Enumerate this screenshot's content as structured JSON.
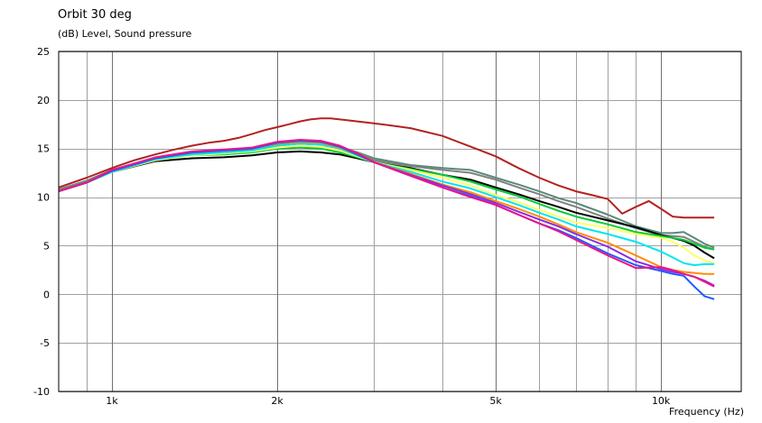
{
  "chart_data": {
    "type": "line",
    "title": "Orbit 30 deg",
    "ylabel": "(dB)  Level, Sound pressure",
    "xlabel": "Frequency  (Hz)",
    "x_scale": "log",
    "xlim": [
      800,
      14000
    ],
    "ylim": [
      -10,
      25
    ],
    "y_ticks": [
      25,
      20,
      15,
      10,
      5,
      0,
      -5,
      -10
    ],
    "y_tick_labels": [
      "25",
      "20",
      "15",
      "10",
      "5",
      "0",
      "-5",
      "-10"
    ],
    "x_ticks": [
      1000,
      2000,
      5000,
      10000
    ],
    "x_tick_labels": [
      "1k",
      "2k",
      "5k",
      "10k"
    ],
    "grid": true,
    "series": [
      {
        "color": "#b22222",
        "x": [
          800,
          900,
          1000,
          1100,
          1200,
          1300,
          1400,
          1500,
          1600,
          1700,
          1800,
          1900,
          2000,
          2100,
          2200,
          2300,
          2400,
          2500,
          2600,
          2800,
          3000,
          3200,
          3500,
          4000,
          4500,
          5000,
          5500,
          6000,
          6500,
          7000,
          7500,
          8000,
          8500,
          9000,
          9500,
          10000,
          10500,
          11000,
          11500,
          12000,
          12500
        ],
        "y": [
          11.0,
          12.0,
          13.0,
          13.8,
          14.4,
          14.9,
          15.3,
          15.6,
          15.8,
          16.1,
          16.5,
          16.9,
          17.2,
          17.5,
          17.8,
          18.0,
          18.1,
          18.1,
          18.0,
          17.8,
          17.6,
          17.4,
          17.1,
          16.3,
          15.2,
          14.2,
          13.0,
          12.0,
          11.2,
          10.6,
          10.2,
          9.8,
          8.3,
          9.0,
          9.6,
          8.8,
          8.0,
          7.9,
          7.9,
          7.9,
          7.9
        ]
      },
      {
        "color": "#5a8a7a",
        "x": [
          800,
          900,
          1000,
          1200,
          1400,
          1600,
          1800,
          2000,
          2200,
          2400,
          2600,
          2800,
          3000,
          3500,
          4000,
          4500,
          5000,
          5500,
          6000,
          6500,
          7000,
          8000,
          9000,
          10000,
          10500,
          11000,
          11500,
          12000,
          12500
        ],
        "y": [
          10.8,
          11.7,
          12.8,
          14.0,
          14.6,
          14.8,
          15.0,
          15.4,
          15.7,
          15.6,
          15.2,
          14.6,
          14.0,
          13.3,
          13.0,
          12.8,
          12.0,
          11.3,
          10.6,
          9.9,
          9.4,
          8.2,
          7.0,
          6.3,
          6.3,
          6.4,
          5.8,
          5.2,
          4.8
        ]
      },
      {
        "color": "#808080",
        "x": [
          800,
          900,
          1000,
          1200,
          1400,
          1600,
          1800,
          2000,
          2200,
          2400,
          2600,
          2800,
          3000,
          3500,
          4000,
          4500,
          5000,
          5500,
          6000,
          6500,
          7000,
          8000,
          9000,
          10000,
          10500,
          11000,
          11500,
          12000,
          12500
        ],
        "y": [
          10.7,
          11.6,
          12.7,
          13.9,
          14.5,
          14.7,
          14.9,
          15.3,
          15.5,
          15.4,
          15.0,
          14.4,
          13.8,
          13.2,
          12.8,
          12.5,
          11.8,
          11.0,
          10.3,
          9.6,
          9.0,
          7.8,
          6.8,
          6.1,
          6.0,
          5.9,
          5.4,
          4.9,
          4.6
        ]
      },
      {
        "color": "#000000",
        "x": [
          800,
          900,
          1000,
          1200,
          1400,
          1600,
          1800,
          2000,
          2200,
          2400,
          2600,
          2800,
          3000,
          3500,
          4000,
          4500,
          5000,
          5500,
          6000,
          6500,
          7000,
          8000,
          9000,
          10000,
          10500,
          11000,
          11500,
          12000,
          12500
        ],
        "y": [
          10.6,
          11.5,
          12.6,
          13.7,
          14.0,
          14.1,
          14.3,
          14.6,
          14.7,
          14.6,
          14.4,
          14.0,
          13.6,
          13.0,
          12.3,
          11.8,
          11.0,
          10.3,
          9.6,
          9.0,
          8.4,
          7.6,
          6.9,
          6.1,
          5.8,
          5.5,
          5.0,
          4.3,
          3.7
        ]
      },
      {
        "color": "#00cc33",
        "x": [
          800,
          900,
          1000,
          1200,
          1400,
          1600,
          1800,
          2000,
          2200,
          2400,
          2600,
          2800,
          3000,
          3500,
          4000,
          4500,
          5000,
          5500,
          6000,
          6500,
          7000,
          8000,
          9000,
          10000,
          10500,
          11000,
          11500,
          12000,
          12500
        ],
        "y": [
          10.6,
          11.5,
          12.6,
          13.8,
          14.3,
          14.4,
          14.6,
          15.0,
          15.1,
          15.0,
          14.6,
          14.1,
          13.6,
          12.9,
          12.3,
          11.6,
          10.8,
          10.1,
          9.3,
          8.6,
          8.0,
          7.2,
          6.4,
          6.0,
          5.8,
          5.6,
          5.2,
          4.8,
          4.6
        ]
      },
      {
        "color": "#ffff66",
        "x": [
          800,
          900,
          1000,
          1200,
          1400,
          1600,
          1800,
          2000,
          2200,
          2400,
          2600,
          2800,
          3000,
          3500,
          4000,
          4500,
          5000,
          5500,
          6000,
          6500,
          7000,
          8000,
          9000,
          10000,
          10500,
          11000,
          11500,
          12000,
          12500
        ],
        "y": [
          10.6,
          11.5,
          12.6,
          13.8,
          14.3,
          14.5,
          14.7,
          15.1,
          15.3,
          15.2,
          14.8,
          14.2,
          13.6,
          12.8,
          12.0,
          11.2,
          10.2,
          9.5,
          8.7,
          8.0,
          7.4,
          6.8,
          6.2,
          5.8,
          5.4,
          4.8,
          4.0,
          3.5,
          3.2
        ]
      },
      {
        "color": "#00e5ee",
        "x": [
          800,
          900,
          1000,
          1200,
          1400,
          1600,
          1800,
          2000,
          2200,
          2400,
          2600,
          2800,
          3000,
          3500,
          4000,
          4500,
          5000,
          5500,
          6000,
          6500,
          7000,
          8000,
          9000,
          10000,
          10500,
          11000,
          11500,
          12000,
          12500
        ],
        "y": [
          10.6,
          11.5,
          12.6,
          13.9,
          14.4,
          14.6,
          14.8,
          15.3,
          15.5,
          15.4,
          15.0,
          14.3,
          13.6,
          12.6,
          11.6,
          10.9,
          10.0,
          9.2,
          8.4,
          7.7,
          7.0,
          6.2,
          5.4,
          4.4,
          3.8,
          3.2,
          3.0,
          3.1,
          3.1
        ]
      },
      {
        "color": "#ff8c00",
        "x": [
          800,
          900,
          1000,
          1200,
          1400,
          1600,
          1800,
          2000,
          2200,
          2400,
          2600,
          2800,
          3000,
          3500,
          4000,
          4500,
          5000,
          5500,
          6000,
          6500,
          7000,
          8000,
          9000,
          10000,
          10500,
          11000,
          11500,
          12000,
          12500
        ],
        "y": [
          10.6,
          11.5,
          12.7,
          14.0,
          14.6,
          14.8,
          15.0,
          15.5,
          15.7,
          15.6,
          15.1,
          14.4,
          13.6,
          12.4,
          11.3,
          10.5,
          9.6,
          8.8,
          8.0,
          7.2,
          6.4,
          5.3,
          4.0,
          2.8,
          2.5,
          2.3,
          2.2,
          2.1,
          2.1
        ]
      },
      {
        "color": "#8a2be2",
        "x": [
          800,
          900,
          1000,
          1200,
          1400,
          1600,
          1800,
          2000,
          2200,
          2400,
          2600,
          2800,
          3000,
          3500,
          4000,
          4500,
          5000,
          5500,
          6000,
          6500,
          7000,
          8000,
          9000,
          10000,
          10500,
          11000,
          11500,
          12000,
          12500
        ],
        "y": [
          10.6,
          11.5,
          12.7,
          14.0,
          14.6,
          14.8,
          15.0,
          15.6,
          15.8,
          15.7,
          15.2,
          14.4,
          13.6,
          12.3,
          11.2,
          10.3,
          9.4,
          8.5,
          7.7,
          7.0,
          6.2,
          4.9,
          3.4,
          2.6,
          2.3,
          2.1,
          1.8,
          1.4,
          0.9
        ]
      },
      {
        "color": "#1e5aff",
        "x": [
          800,
          900,
          1000,
          1200,
          1400,
          1600,
          1800,
          2000,
          2200,
          2400,
          2600,
          2800,
          3000,
          3500,
          4000,
          4500,
          5000,
          5500,
          6000,
          6500,
          7000,
          8000,
          9000,
          10000,
          10500,
          11000,
          11500,
          12000,
          12500
        ],
        "y": [
          10.6,
          11.5,
          12.7,
          14.0,
          14.6,
          14.8,
          15.0,
          15.6,
          15.8,
          15.7,
          15.2,
          14.4,
          13.6,
          12.2,
          11.0,
          10.1,
          9.2,
          8.2,
          7.3,
          6.6,
          5.8,
          4.2,
          3.0,
          2.4,
          2.1,
          1.9,
          0.8,
          -0.2,
          -0.5
        ]
      },
      {
        "color": "#ee1289",
        "x": [
          800,
          900,
          1000,
          1200,
          1400,
          1600,
          1800,
          2000,
          2200,
          2400,
          2600,
          2800,
          3000,
          3500,
          4000,
          4500,
          5000,
          5500,
          6000,
          6500,
          7000,
          8000,
          9000,
          10000,
          10500,
          11000,
          11500,
          12000,
          12500
        ],
        "y": [
          10.6,
          11.5,
          12.8,
          14.1,
          14.7,
          14.9,
          15.1,
          15.7,
          15.9,
          15.8,
          15.3,
          14.5,
          13.6,
          12.2,
          11.0,
          10.0,
          9.2,
          8.2,
          7.3,
          6.5,
          5.6,
          4.0,
          2.7,
          2.8,
          2.5,
          2.1,
          1.8,
          1.3,
          0.8
        ]
      }
    ]
  }
}
